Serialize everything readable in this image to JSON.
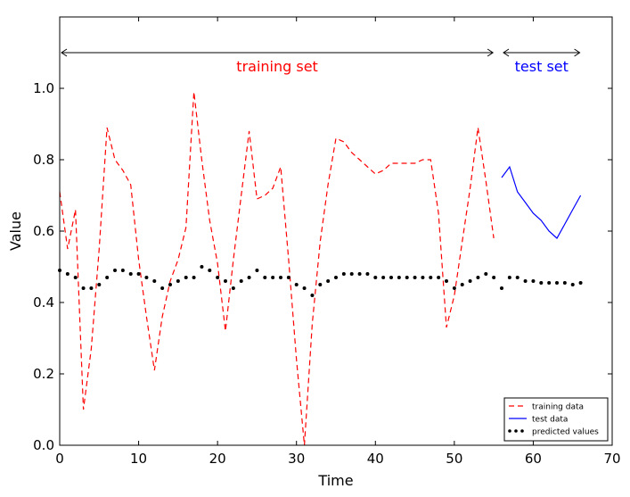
{
  "chart_data": {
    "type": "line",
    "xlabel": "Time",
    "ylabel": "Value",
    "xlim": [
      0,
      70
    ],
    "ylim": [
      0.0,
      1.2
    ],
    "x_ticks": [
      0,
      10,
      20,
      30,
      40,
      50,
      60,
      70
    ],
    "y_ticks": [
      0.0,
      0.2,
      0.4,
      0.6,
      0.8,
      1.0
    ],
    "x_tick_labels": [
      "0",
      "10",
      "20",
      "30",
      "40",
      "50",
      "60",
      "70"
    ],
    "y_tick_labels": [
      "0.0",
      "0.2",
      "0.4",
      "0.6",
      "0.8",
      "1.0"
    ],
    "grid": false,
    "legend_position": "lower-right",
    "series": [
      {
        "name": "training data",
        "style": "dashed",
        "color": "#ff0000",
        "x": [
          0,
          1,
          2,
          3,
          4,
          5,
          6,
          7,
          8,
          9,
          10,
          11,
          12,
          13,
          14,
          15,
          16,
          17,
          18,
          19,
          20,
          21,
          22,
          23,
          24,
          25,
          26,
          27,
          28,
          29,
          30,
          31,
          32,
          33,
          34,
          35,
          36,
          37,
          38,
          39,
          40,
          41,
          42,
          43,
          44,
          45,
          46,
          47,
          48,
          49,
          50,
          51,
          52,
          53,
          54,
          55
        ],
        "y": [
          0.71,
          0.55,
          0.66,
          0.1,
          0.27,
          0.55,
          0.89,
          0.8,
          0.77,
          0.73,
          0.52,
          0.36,
          0.21,
          0.36,
          0.46,
          0.52,
          0.61,
          0.99,
          0.8,
          0.63,
          0.51,
          0.32,
          0.52,
          0.7,
          0.88,
          0.69,
          0.7,
          0.72,
          0.78,
          0.52,
          0.24,
          0.0,
          0.34,
          0.57,
          0.73,
          0.86,
          0.85,
          0.82,
          0.8,
          0.78,
          0.76,
          0.77,
          0.79,
          0.79,
          0.79,
          0.79,
          0.8,
          0.8,
          0.65,
          0.33,
          0.42,
          0.57,
          0.72,
          0.89,
          0.74,
          0.58
        ]
      },
      {
        "name": "test data",
        "style": "solid",
        "color": "#0000ff",
        "x": [
          56,
          57,
          58,
          59,
          60,
          61,
          62,
          63,
          64,
          65,
          66
        ],
        "y": [
          0.75,
          0.78,
          0.71,
          0.68,
          0.65,
          0.63,
          0.6,
          0.58,
          0.62,
          0.66,
          0.7
        ]
      },
      {
        "name": "predicted values",
        "style": "dotted",
        "color": "#000000",
        "x": [
          0,
          1,
          2,
          3,
          4,
          5,
          6,
          7,
          8,
          9,
          10,
          11,
          12,
          13,
          14,
          15,
          16,
          17,
          18,
          19,
          20,
          21,
          22,
          23,
          24,
          25,
          26,
          27,
          28,
          29,
          30,
          31,
          32,
          33,
          34,
          35,
          36,
          37,
          38,
          39,
          40,
          41,
          42,
          43,
          44,
          45,
          46,
          47,
          48,
          49,
          50,
          51,
          52,
          53,
          54,
          55,
          56,
          57,
          58,
          59,
          60,
          61,
          62,
          63,
          64,
          65,
          66
        ],
        "y": [
          0.49,
          0.48,
          0.47,
          0.44,
          0.44,
          0.45,
          0.47,
          0.49,
          0.49,
          0.48,
          0.48,
          0.47,
          0.46,
          0.44,
          0.45,
          0.46,
          0.47,
          0.47,
          0.5,
          0.49,
          0.47,
          0.46,
          0.44,
          0.46,
          0.47,
          0.49,
          0.47,
          0.47,
          0.47,
          0.47,
          0.45,
          0.44,
          0.42,
          0.45,
          0.46,
          0.47,
          0.48,
          0.48,
          0.48,
          0.48,
          0.47,
          0.47,
          0.47,
          0.47,
          0.47,
          0.47,
          0.47,
          0.47,
          0.47,
          0.46,
          0.44,
          0.45,
          0.46,
          0.47,
          0.48,
          0.47,
          0.44,
          0.47,
          0.47,
          0.46,
          0.46,
          0.455,
          0.455,
          0.455,
          0.455,
          0.45,
          0.455
        ]
      }
    ],
    "annotations": [
      {
        "name": "training-set",
        "text": "training set",
        "x_from": 0,
        "x_to": 55,
        "y": 1.1,
        "color": "#ff0000"
      },
      {
        "name": "test-set",
        "text": "test set",
        "x_from": 56,
        "x_to": 66,
        "y": 1.1,
        "color": "#0000ff"
      }
    ]
  }
}
